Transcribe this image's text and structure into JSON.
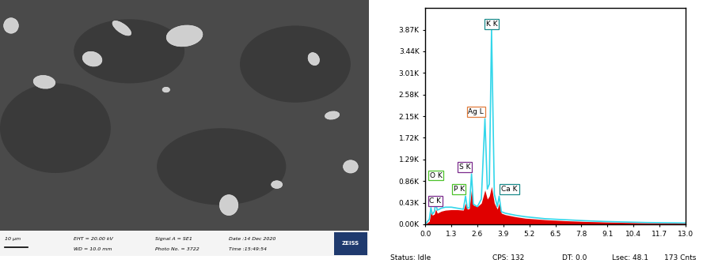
{
  "micrograph": {
    "scale_bar": "10 µm",
    "info": [
      [
        "EHT = 20.00 kV",
        "WD = 10.0 mm"
      ],
      [
        "Signal A = SE1",
        "Photo No. = 3722"
      ],
      [
        "Date :14 Dec 2020",
        "Time :15:49:54"
      ]
    ],
    "logo": "ZEISS"
  },
  "chart_data": {
    "type": "line",
    "x": [
      0.0,
      0.2,
      0.28,
      0.35,
      0.45,
      0.52,
      0.6,
      0.8,
      1.0,
      1.3,
      1.6,
      1.9,
      2.01,
      2.1,
      2.2,
      2.31,
      2.4,
      2.6,
      2.8,
      2.98,
      3.1,
      3.2,
      3.31,
      3.45,
      3.6,
      3.69,
      3.8,
      4.0,
      4.5,
      5.0,
      6.0,
      7.0,
      8.0,
      9.0,
      10.0,
      11.0,
      12.0,
      13.0
    ],
    "series": [
      {
        "type": "area",
        "color": "#e00000",
        "values": [
          0,
          60,
          250,
          180,
          200,
          300,
          220,
          260,
          280,
          290,
          290,
          280,
          420,
          300,
          310,
          700,
          380,
          350,
          420,
          680,
          500,
          560,
          750,
          420,
          300,
          420,
          220,
          190,
          150,
          120,
          90,
          70,
          55,
          45,
          35,
          28,
          22,
          18
        ]
      },
      {
        "type": "line",
        "color": "#33d6ea",
        "values": [
          0,
          100,
          330,
          200,
          250,
          420,
          280,
          320,
          340,
          340,
          320,
          300,
          560,
          320,
          330,
          1000,
          400,
          350,
          500,
          2100,
          700,
          800,
          3870,
          600,
          350,
          560,
          250,
          220,
          180,
          150,
          110,
          90,
          70,
          55,
          45,
          35,
          30,
          25
        ]
      }
    ],
    "annotations": [
      {
        "text": "C K",
        "x": 0.28,
        "color": "#7a2a8c"
      },
      {
        "text": "O K",
        "x": 0.52,
        "color": "#4cc22a"
      },
      {
        "text": "P K",
        "x": 2.01,
        "color": "#4cc22a"
      },
      {
        "text": "S K",
        "x": 2.31,
        "color": "#7a2a8c"
      },
      {
        "text": "Ag L",
        "x": 2.98,
        "color": "#e07a3a"
      },
      {
        "text": "K K",
        "x": 3.31,
        "color": "#1a8a8a"
      },
      {
        "text": "Ca K",
        "x": 3.69,
        "color": "#1a8a8a"
      }
    ],
    "xlim": [
      0.0,
      13.0
    ],
    "xticks": [
      {
        "value": 0.0,
        "label": "0.0"
      },
      1.3,
      2.6,
      3.9,
      5.2,
      6.5,
      7.8,
      9.1,
      10.4,
      11.7,
      {
        "value": 13.0,
        "label": "13.0"
      }
    ],
    "ylim": [
      0,
      4300
    ],
    "yticks": [
      {
        "value": 0,
        "label": "0.00K"
      },
      {
        "value": 430,
        "label": "0.43K"
      },
      {
        "value": 860,
        "label": "0.86K"
      },
      {
        "value": 1290,
        "label": "1.29K"
      },
      {
        "value": 1720,
        "label": "1.72K"
      },
      {
        "value": 2150,
        "label": "2.15K"
      },
      {
        "value": 2580,
        "label": "2.58K"
      },
      {
        "value": 3010,
        "label": "3.01K"
      },
      {
        "value": 3440,
        "label": "3.44K"
      },
      {
        "value": 3870,
        "label": "3.87K"
      }
    ],
    "grid": false
  },
  "status_bar": [
    "Status: Idle",
    "CPS: 132",
    "DT: 0.0",
    "Lsec: 48.1",
    "173 Cnts"
  ]
}
